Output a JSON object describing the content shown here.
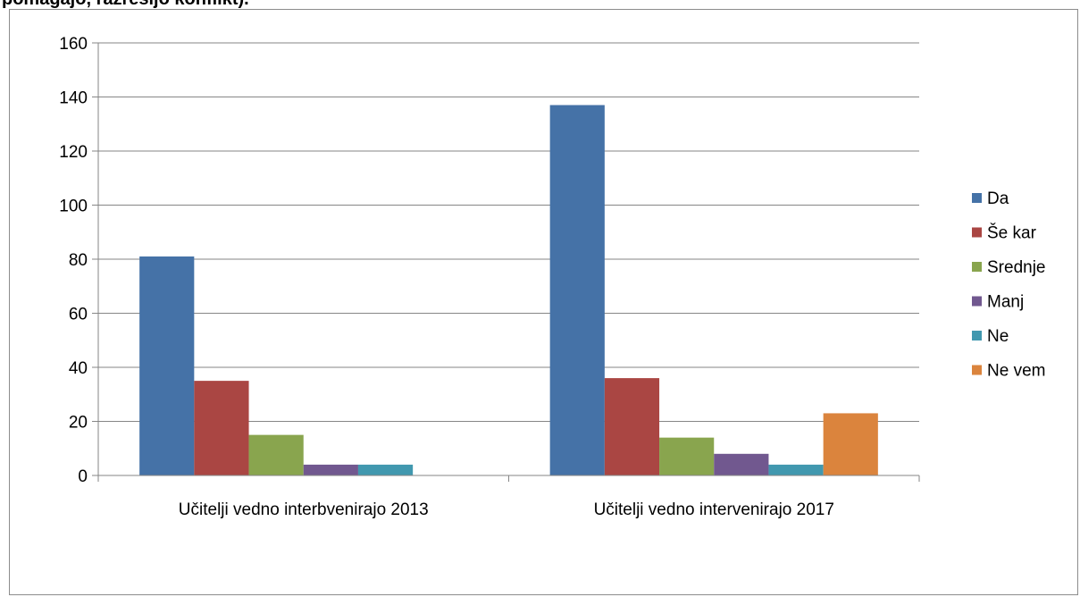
{
  "page": {
    "title": "pomagajo, razrešijo konflikt)."
  },
  "chart_data": {
    "type": "bar",
    "categories": [
      "Učitelji vedno interbvenirajo 2013",
      "Učitelji vedno intervenirajo 2017"
    ],
    "series": [
      {
        "name": "Da",
        "color": "#4572a7",
        "values": [
          81,
          137
        ]
      },
      {
        "name": "Še kar",
        "color": "#aa4643",
        "values": [
          35,
          36
        ]
      },
      {
        "name": "Srednje",
        "color": "#89a54e",
        "values": [
          15,
          14
        ]
      },
      {
        "name": "Manj",
        "color": "#71588f",
        "values": [
          4,
          8
        ]
      },
      {
        "name": "Ne",
        "color": "#4198af",
        "values": [
          4,
          4
        ]
      },
      {
        "name": "Ne vem",
        "color": "#db843d",
        "values": [
          0,
          23
        ]
      }
    ],
    "ylim": [
      0,
      160
    ],
    "yticks": [
      "0",
      "20",
      "40",
      "60",
      "80",
      "100",
      "120",
      "140",
      "160"
    ],
    "grid": true,
    "legend_position": "right",
    "xlabel": "",
    "ylabel": ""
  }
}
